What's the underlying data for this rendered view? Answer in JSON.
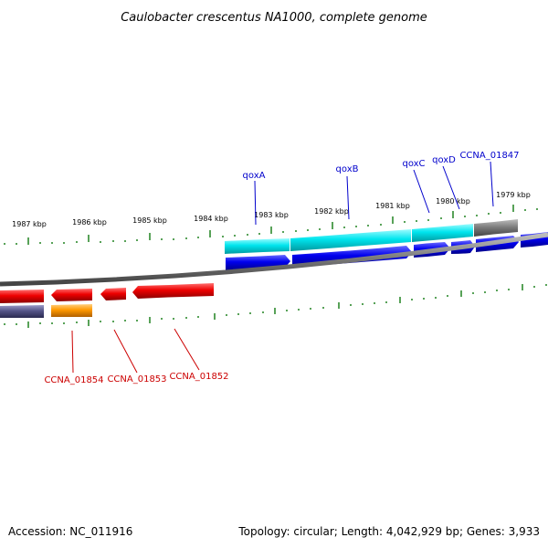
{
  "title": "Caulobacter crescentus NA1000, complete genome",
  "scale_labels": [
    "1987 kbp",
    "1986 kbp",
    "1985 kbp",
    "1984 kbp",
    "1983 kbp",
    "1982 kbp",
    "1981 kbp",
    "1980 kbp",
    "1979 kbp"
  ],
  "genes_top": [
    {
      "label": "qoxA"
    },
    {
      "label": "qoxB"
    },
    {
      "label": "qoxC"
    },
    {
      "label": "qoxD"
    },
    {
      "label": "CCNA_01847"
    }
  ],
  "genes_bottom": [
    {
      "label": "CCNA_01854"
    },
    {
      "label": "CCNA_01853"
    },
    {
      "label": "CCNA_01852"
    }
  ],
  "footer": {
    "accession": "Accession: NC_011916",
    "stats": "Topology: circular; Length: 4,042,929 bp; Genes: 3,933"
  },
  "colors": {
    "cog_cyan": "#00e5ee",
    "cds_blue": "#0000ee",
    "cds_red": "#ee0000",
    "cog_orange": "#ff9900",
    "cog_purple": "#555588",
    "backbone": "#888888",
    "tick_green": "#2e8b2e"
  }
}
